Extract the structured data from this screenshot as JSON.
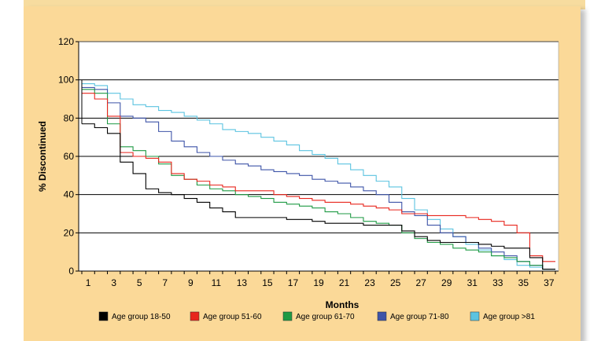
{
  "chart_data": {
    "type": "line",
    "step": true,
    "xlabel": "Months",
    "ylabel": "% Discontinued",
    "xlim": [
      1,
      37
    ],
    "ylim": [
      0,
      120
    ],
    "x_ticks": [
      1,
      3,
      5,
      7,
      9,
      11,
      13,
      15,
      17,
      19,
      21,
      23,
      25,
      27,
      29,
      31,
      33,
      35,
      37
    ],
    "y_ticks": [
      0,
      20,
      40,
      60,
      80,
      100,
      120
    ],
    "grid": "horizontal",
    "legend_position": "bottom",
    "x": [
      1,
      2,
      3,
      4,
      5,
      6,
      7,
      8,
      9,
      10,
      11,
      12,
      13,
      14,
      15,
      16,
      17,
      18,
      19,
      20,
      21,
      22,
      23,
      24,
      25,
      26,
      27,
      28,
      29,
      30,
      31,
      32,
      33,
      34,
      35,
      36,
      37
    ],
    "series": [
      {
        "name": "Age group 18-50",
        "color": "#000000",
        "values": [
          77,
          75,
          72,
          57,
          51,
          43,
          41,
          40,
          38,
          36,
          33,
          31,
          28,
          28,
          28,
          28,
          27,
          27,
          26,
          25,
          25,
          25,
          24,
          24,
          24,
          21,
          18,
          16,
          15,
          15,
          15,
          14,
          13,
          12,
          12,
          7,
          1
        ]
      },
      {
        "name": "Age group 51-60",
        "color": "#e8251c",
        "values": [
          93,
          90,
          81,
          62,
          60,
          59,
          57,
          51,
          48,
          47,
          45,
          44,
          42,
          42,
          42,
          40,
          39,
          38,
          37,
          36,
          36,
          35,
          34,
          33,
          32,
          30,
          30,
          29,
          29,
          29,
          28,
          27,
          26,
          24,
          20,
          8,
          5
        ]
      },
      {
        "name": "Age group 61-70",
        "color": "#1f9a44",
        "values": [
          95,
          93,
          77,
          65,
          63,
          60,
          56,
          50,
          48,
          45,
          43,
          42,
          40,
          39,
          38,
          36,
          35,
          34,
          33,
          31,
          30,
          28,
          26,
          25,
          24,
          20,
          17,
          15,
          14,
          12,
          11,
          10,
          8,
          7,
          5,
          3,
          1
        ]
      },
      {
        "name": "Age group 71-80",
        "color": "#3e54a8",
        "values": [
          96,
          95,
          88,
          81,
          80,
          78,
          73,
          68,
          65,
          62,
          60,
          58,
          56,
          55,
          53,
          52,
          51,
          50,
          48,
          47,
          46,
          44,
          42,
          40,
          36,
          31,
          29,
          24,
          20,
          18,
          15,
          12,
          10,
          8,
          5,
          3,
          1
        ]
      },
      {
        "name": "Age group >81",
        "color": "#5bc3e0",
        "values": [
          98,
          97,
          93,
          90,
          87,
          86,
          84,
          83,
          81,
          79,
          77,
          74,
          73,
          72,
          70,
          68,
          66,
          63,
          61,
          59,
          56,
          53,
          50,
          47,
          44,
          38,
          32,
          27,
          22,
          18,
          14,
          11,
          8,
          6,
          3,
          2,
          1
        ]
      }
    ]
  }
}
